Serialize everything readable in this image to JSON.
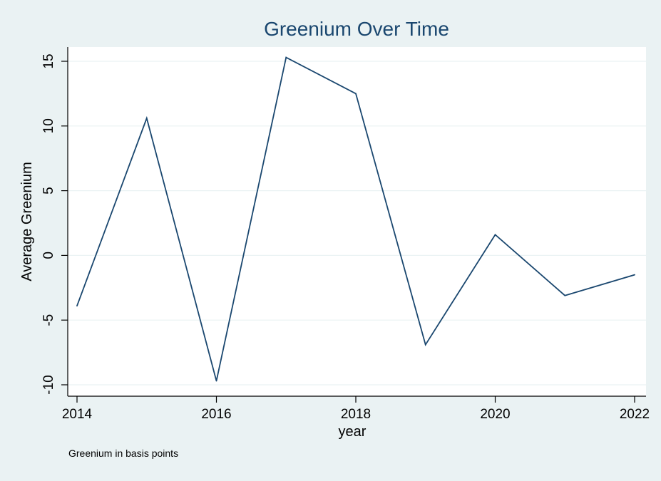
{
  "chart_data": {
    "type": "line",
    "title": "Greenium Over Time",
    "xlabel": "year",
    "ylabel": "Average Greenium",
    "note": "Greenium in basis points",
    "x": [
      2014,
      2015,
      2016,
      2017,
      2018,
      2019,
      2020,
      2021,
      2022
    ],
    "series": [
      {
        "values": [
          -3.9,
          10.6,
          -9.7,
          15.3,
          12.5,
          -6.9,
          1.6,
          -3.1,
          -1.5
        ]
      }
    ],
    "xlim": [
      2014,
      2022
    ],
    "ylim": [
      -10,
      15
    ],
    "xticks": [
      2014,
      2016,
      2018,
      2020,
      2022
    ],
    "yticks": [
      -10,
      -5,
      0,
      5,
      10,
      15
    ],
    "xtick_labels": [
      "2014",
      "2016",
      "2018",
      "2020",
      "2022"
    ],
    "ytick_labels": [
      "-10",
      "-5",
      "0",
      "5",
      "10",
      "15"
    ],
    "grid": true,
    "colors": {
      "background": "#eaf2f3",
      "plot_background": "#ffffff",
      "line": "#1a476f",
      "title": "#1a476f",
      "grid": "#eaf2f3"
    }
  }
}
